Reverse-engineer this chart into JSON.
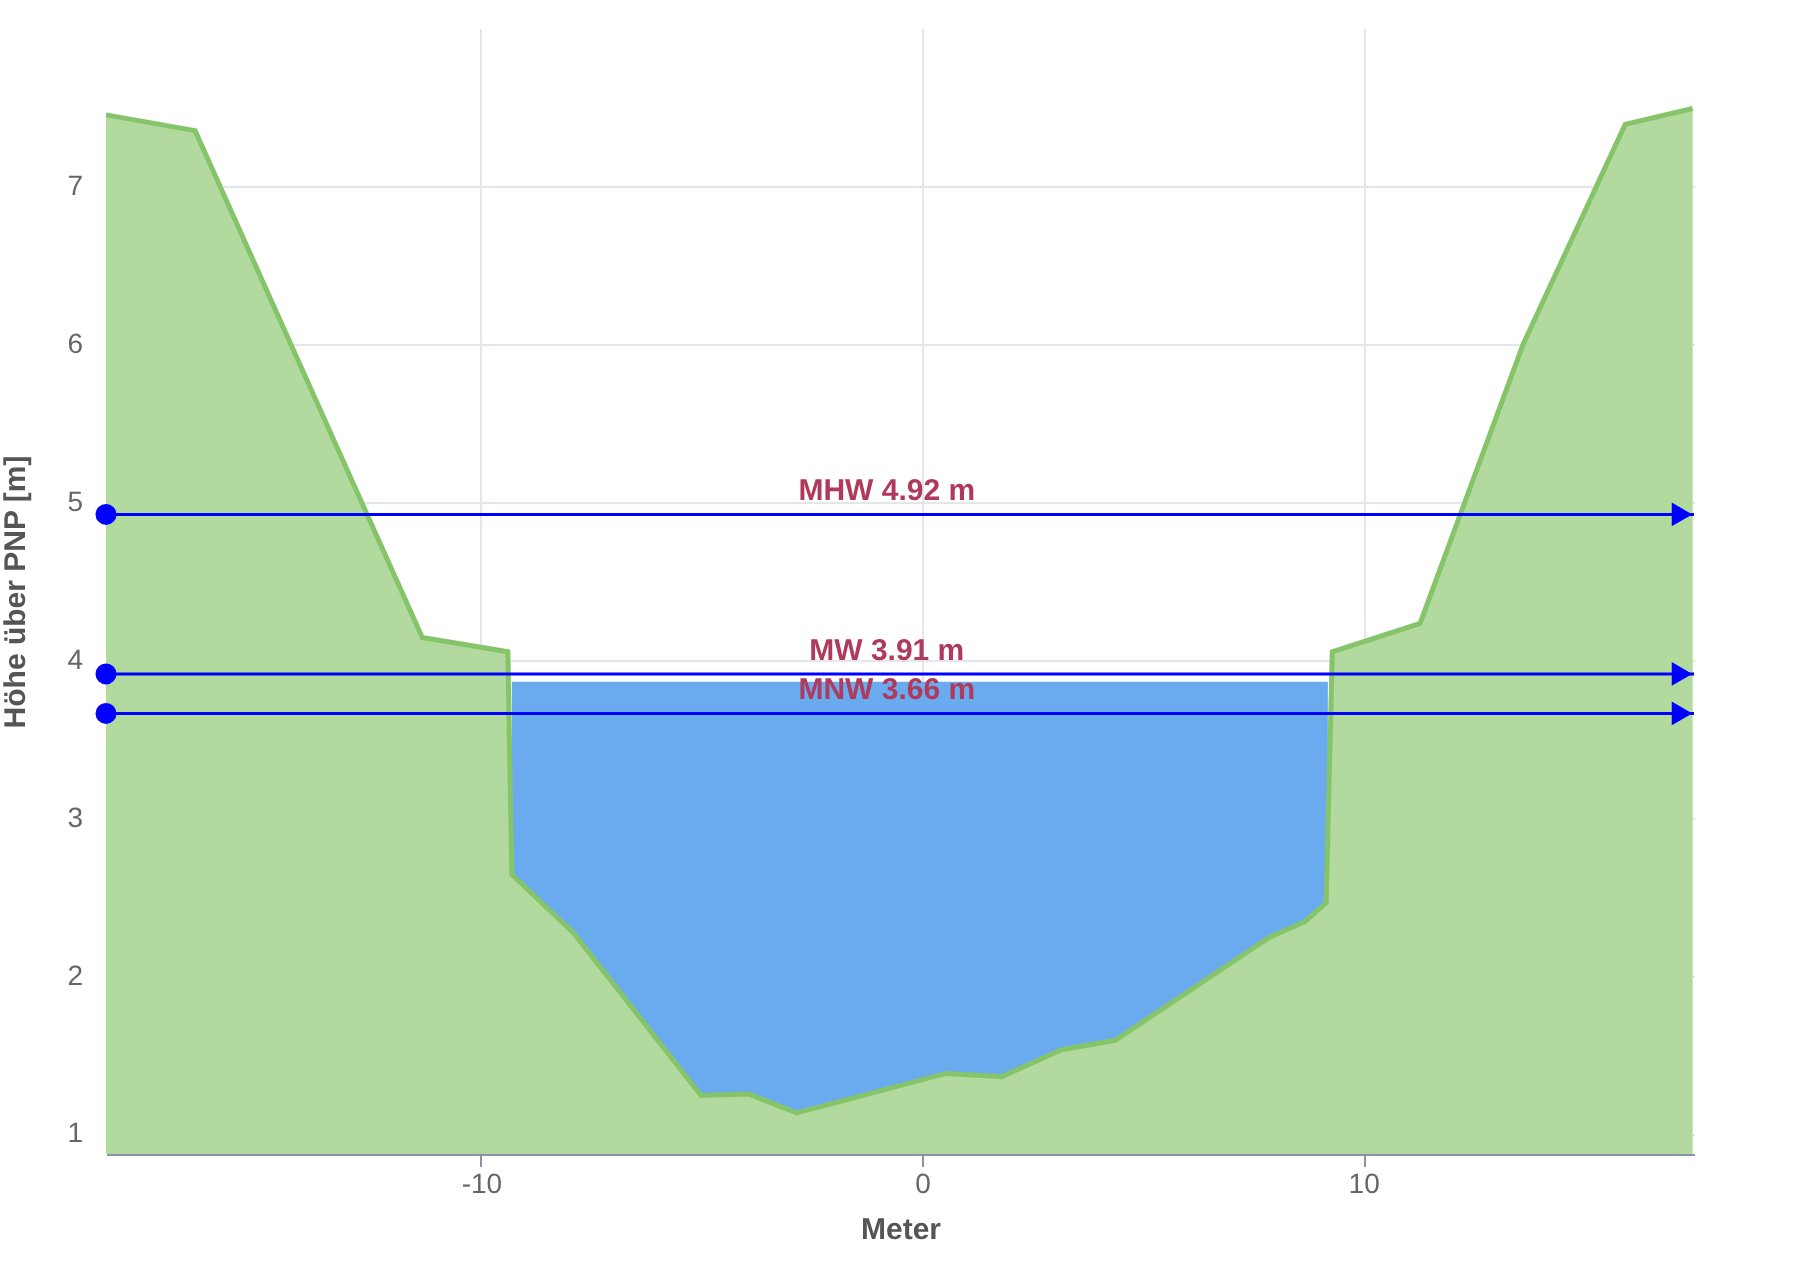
{
  "chart_data": {
    "type": "area",
    "xlabel": "Meter",
    "ylabel": "Höhe über PNP [m]",
    "xlim": [
      -18.5,
      17.5
    ],
    "ylim": [
      0.87,
      8
    ],
    "xticks": [
      -10,
      0,
      10
    ],
    "yticks": [
      1,
      2,
      3,
      4,
      5,
      6,
      7
    ],
    "grid": true,
    "series": [
      {
        "color": "#6aabef",
        "x": [
          -9.3,
          9.2
        ],
        "values": [
          3.86,
          3.86
        ]
      },
      {
        "color": "#b2da9f",
        "x": [
          -18.5,
          -16.48,
          -11.33,
          -9.39,
          -9.3,
          -7.9,
          -5.01,
          -3.93,
          -2.84,
          0.54,
          1.81,
          3.16,
          4.38,
          7.86,
          8.67,
          9.16,
          9.3,
          11.29,
          13.63,
          15.94,
          17.47
        ],
        "values": [
          7.45,
          7.35,
          4.14,
          4.05,
          2.64,
          2.27,
          1.24,
          1.25,
          1.13,
          1.38,
          1.36,
          1.53,
          1.59,
          2.24,
          2.34,
          2.46,
          4.05,
          4.23,
          6.0,
          7.39,
          7.49
        ]
      }
    ],
    "ref_lines": [
      {
        "axis": "y",
        "value": 4.92,
        "label": "MHW 4.92 m",
        "color": "#0000ff"
      },
      {
        "axis": "y",
        "value": 3.91,
        "label": "MW 3.91 m",
        "color": "#0000ff"
      },
      {
        "axis": "y",
        "value": 3.66,
        "label": "MNW 3.66 m",
        "color": "#0000ff"
      }
    ]
  }
}
